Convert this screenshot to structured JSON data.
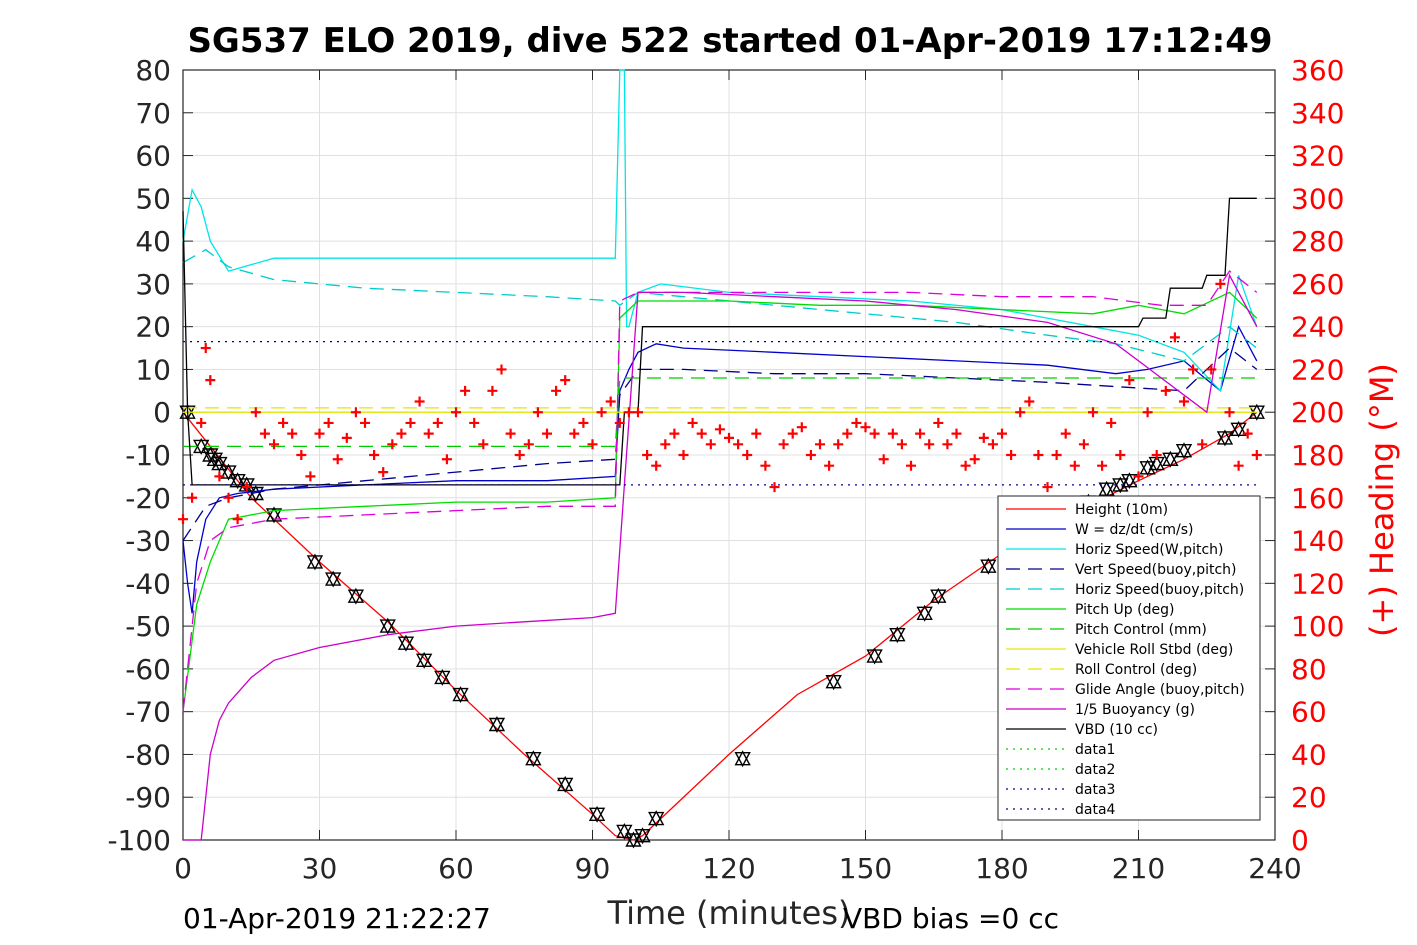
{
  "chart_data": {
    "type": "line",
    "title": "SG537 ELO 2019, dive 522 started 01-Apr-2019 17:12:49",
    "xlabel": "Time (minutes)",
    "ylabel": "",
    "ylabel_right": "(+) Heading (°M)",
    "xlim": [
      0,
      240
    ],
    "ylim": [
      -100,
      80
    ],
    "ylim_right": [
      0,
      360
    ],
    "x_ticks": [
      "0",
      "30",
      "60",
      "90",
      "120",
      "150",
      "180",
      "210",
      "240"
    ],
    "y_ticks": [
      "80",
      "70",
      "60",
      "50",
      "40",
      "30",
      "20",
      "10",
      "0",
      "-10",
      "-20",
      "-30",
      "-40",
      "-50",
      "-60",
      "-70",
      "-80",
      "-90",
      "-100"
    ],
    "y_ticks_right": [
      "360",
      "340",
      "320",
      "300",
      "280",
      "260",
      "240",
      "220",
      "200",
      "180",
      "160",
      "140",
      "120",
      "100",
      "80",
      "60",
      "40",
      "20",
      "0"
    ],
    "grid": true,
    "legend_placement": "bottom-right",
    "footer_left": "01-Apr-2019 21:22:27",
    "footer_right": "VBD bias =0 cc",
    "legend": [
      {
        "name": "Height (10m)",
        "color": "#ff0000",
        "dash": "solid"
      },
      {
        "name": "W = dz/dt (cm/s)",
        "color": "#0000cc",
        "dash": "solid"
      },
      {
        "name": "Horiz Speed(W,pitch)",
        "color": "#00e5e5",
        "dash": "solid"
      },
      {
        "name": "Vert Speed(buoy,pitch)",
        "color": "#00008b",
        "dash": "dashed"
      },
      {
        "name": "Horiz Speed(buoy,pitch)",
        "color": "#00cccc",
        "dash": "dashed"
      },
      {
        "name": "Pitch Up (deg)",
        "color": "#00dd00",
        "dash": "solid"
      },
      {
        "name": "Pitch Control (mm)",
        "color": "#00cc00",
        "dash": "dashed"
      },
      {
        "name": "Vehicle Roll Stbd (deg)",
        "color": "#e5e500",
        "dash": "solid"
      },
      {
        "name": "Roll Control (deg)",
        "color": "#e5e500",
        "dash": "dashed"
      },
      {
        "name": "Glide Angle (buoy,pitch)",
        "color": "#dd00dd",
        "dash": "dashed"
      },
      {
        "name": "1/5 Buoyancy (g)",
        "color": "#cc00cc",
        "dash": "solid"
      },
      {
        "name": "VBD (10 cc)",
        "color": "#000000",
        "dash": "solid"
      },
      {
        "name": "data1",
        "color": "#00cc00",
        "dash": "dotted"
      },
      {
        "name": "data2",
        "color": "#00cc00",
        "dash": "dotted"
      },
      {
        "name": "data3",
        "color": "#00008b",
        "dash": "dotted"
      },
      {
        "name": "data4",
        "color": "#00008b",
        "dash": "dotted"
      }
    ],
    "series": [
      {
        "key": "height",
        "color": "#ff0000",
        "dash": "solid",
        "axis": "left",
        "x": [
          0,
          15,
          30,
          45,
          60,
          75,
          90,
          95,
          99,
          101,
          105,
          120,
          135,
          150,
          165,
          180,
          195,
          210,
          220,
          230,
          236
        ],
        "y": [
          0,
          -20,
          -35,
          -49,
          -65,
          -80,
          -94,
          -99,
          -100,
          -99,
          -95,
          -80,
          -66,
          -57,
          -44,
          -33,
          -24,
          -16,
          -11,
          -5,
          0
        ]
      },
      {
        "key": "height-markers",
        "type": "markers",
        "color": "#000000",
        "axis": "left",
        "x": [
          1,
          4,
          6,
          7,
          8,
          10,
          12,
          14,
          16,
          20,
          29,
          33,
          38,
          45,
          49,
          53,
          57,
          61,
          69,
          77,
          84,
          91,
          97,
          99,
          101,
          104,
          123,
          143,
          152,
          157,
          163,
          166,
          177,
          187,
          193,
          199,
          203,
          206,
          208,
          212,
          214,
          217,
          220,
          229,
          232,
          236
        ],
        "y": [
          0,
          -8,
          -10,
          -11,
          -12,
          -14,
          -16,
          -17,
          -19,
          -24,
          -35,
          -39,
          -43,
          -50,
          -54,
          -58,
          -62,
          -66,
          -73,
          -81,
          -87,
          -94,
          -98,
          -100,
          -99,
          -95,
          -81,
          -63,
          -57,
          -52,
          -47,
          -43,
          -36,
          -31,
          -26,
          -21,
          -18,
          -17,
          -16,
          -13,
          -12,
          -11,
          -9,
          -6,
          -4,
          0
        ]
      },
      {
        "key": "w",
        "color": "#0000cc",
        "dash": "solid",
        "axis": "left",
        "x": [
          0,
          1,
          2,
          3,
          5,
          8,
          12,
          20,
          40,
          60,
          80,
          95,
          96,
          98,
          100,
          104,
          110,
          130,
          150,
          170,
          190,
          205,
          212,
          220,
          228,
          232,
          236
        ],
        "y": [
          -30,
          -40,
          -47,
          -35,
          -25,
          -20,
          -19,
          -18,
          -17,
          -16,
          -16,
          -15,
          5,
          10,
          14,
          16,
          15,
          14,
          13,
          12,
          11,
          9,
          10,
          12,
          5,
          20,
          12
        ]
      },
      {
        "key": "horiz-speed-w",
        "color": "#00e5e5",
        "dash": "solid",
        "axis": "left",
        "x": [
          0,
          2,
          4,
          6,
          10,
          20,
          40,
          60,
          80,
          95,
          96,
          97,
          97.5,
          98,
          100,
          105,
          120,
          140,
          160,
          180,
          200,
          210,
          220,
          228,
          232,
          236
        ],
        "y": [
          40,
          52,
          48,
          40,
          33,
          36,
          36,
          36,
          36,
          36,
          80,
          80,
          20,
          20,
          28,
          30,
          28,
          27,
          26,
          24,
          20,
          18,
          14,
          5,
          32,
          20
        ]
      },
      {
        "key": "vert-speed-buoy",
        "color": "#00008b",
        "dash": "dashed",
        "axis": "left",
        "x": [
          0,
          5,
          10,
          20,
          40,
          60,
          80,
          95,
          96,
          100,
          110,
          130,
          150,
          170,
          190,
          205,
          220,
          230,
          236
        ],
        "y": [
          -30,
          -22,
          -20,
          -18,
          -16,
          -14,
          -12,
          -11,
          4,
          10,
          10,
          9,
          9,
          8,
          7,
          6,
          5,
          15,
          10
        ]
      },
      {
        "key": "horiz-speed-buoy",
        "color": "#00cccc",
        "dash": "dashed",
        "axis": "left",
        "x": [
          0,
          5,
          10,
          20,
          40,
          60,
          80,
          95,
          96,
          100,
          110,
          130,
          150,
          170,
          190,
          205,
          220,
          230,
          236
        ],
        "y": [
          35,
          38,
          34,
          31,
          29,
          28,
          27,
          26,
          25,
          28,
          27,
          25,
          23,
          21,
          18,
          16,
          12,
          20,
          15
        ]
      },
      {
        "key": "pitch-up",
        "color": "#00dd00",
        "dash": "solid",
        "axis": "left",
        "x": [
          0,
          3,
          6,
          10,
          20,
          40,
          60,
          80,
          95,
          96,
          100,
          120,
          140,
          160,
          180,
          200,
          210,
          220,
          230,
          236
        ],
        "y": [
          -70,
          -45,
          -35,
          -25,
          -23,
          -22,
          -21,
          -21,
          -20,
          22,
          26,
          26,
          25,
          25,
          24,
          23,
          25,
          23,
          28,
          22
        ]
      },
      {
        "key": "pitch-control",
        "color": "#00cc00",
        "dash": "dashed",
        "axis": "left",
        "x": [
          0,
          5,
          10,
          30,
          60,
          90,
          95,
          96,
          100,
          130,
          160,
          200,
          220,
          236
        ],
        "y": [
          -8,
          -8,
          -8,
          -8,
          -8,
          -8,
          -8,
          8,
          8,
          8,
          8,
          8,
          8,
          8
        ]
      },
      {
        "key": "vehicle-roll",
        "color": "#e5e500",
        "dash": "solid",
        "axis": "left",
        "x": [
          0,
          20,
          40,
          60,
          80,
          95,
          100,
          120,
          140,
          160,
          180,
          200,
          220,
          236
        ],
        "y": [
          0,
          0,
          0,
          0,
          0,
          0,
          0,
          0,
          0,
          0,
          0,
          0,
          0,
          0
        ]
      },
      {
        "key": "roll-control",
        "color": "#e5e500",
        "dash": "dashed",
        "axis": "left",
        "x": [
          0,
          20,
          40,
          60,
          80,
          95,
          100,
          120,
          140,
          160,
          180,
          200,
          220,
          236
        ],
        "y": [
          1,
          1,
          1,
          1,
          1,
          1,
          1,
          1,
          1,
          1,
          1,
          1,
          1,
          1
        ]
      },
      {
        "key": "glide-angle",
        "color": "#dd00dd",
        "dash": "dashed",
        "axis": "left",
        "x": [
          0,
          3,
          6,
          10,
          20,
          40,
          60,
          80,
          95,
          96,
          100,
          120,
          140,
          160,
          180,
          200,
          215,
          225,
          230,
          236
        ],
        "y": [
          -70,
          -40,
          -30,
          -27,
          -25,
          -24,
          -23,
          -22,
          -22,
          26,
          28,
          28,
          28,
          28,
          27,
          27,
          25,
          25,
          33,
          28
        ]
      },
      {
        "key": "buoyancy",
        "color": "#cc00cc",
        "dash": "solid",
        "axis": "left",
        "x": [
          0,
          2,
          4,
          6,
          8,
          10,
          15,
          20,
          30,
          45,
          60,
          75,
          90,
          95,
          100,
          110,
          130,
          150,
          170,
          190,
          205,
          215,
          225,
          230,
          236
        ],
        "y": [
          -100,
          -100,
          -100,
          -80,
          -72,
          -68,
          -62,
          -58,
          -55,
          -52,
          -50,
          -49,
          -48,
          -47,
          28,
          28,
          27,
          26,
          24,
          21,
          16,
          8,
          0,
          32,
          20
        ]
      },
      {
        "key": "vbd",
        "color": "#000000",
        "dash": "solid",
        "axis": "left",
        "x": [
          0,
          1,
          2,
          3,
          20,
          95,
          96,
          97,
          100,
          101,
          150,
          210,
          211,
          216,
          217,
          224,
          225,
          229,
          230,
          236
        ],
        "y": [
          47,
          0,
          -17,
          -17,
          -17,
          -17,
          -17,
          0,
          0,
          20,
          20,
          20,
          22,
          22,
          29,
          29,
          32,
          32,
          50,
          50
        ]
      },
      {
        "key": "data3",
        "color": "#00008b",
        "dash": "dotted",
        "axis": "left",
        "x": [
          0,
          236
        ],
        "y": [
          16.5,
          16.5
        ]
      },
      {
        "key": "data4",
        "color": "#00008b",
        "dash": "dotted",
        "axis": "left",
        "x": [
          0,
          236
        ],
        "y": [
          -17,
          -17
        ]
      },
      {
        "key": "heading",
        "type": "cross-markers",
        "color": "#ff0000",
        "axis": "right",
        "x": [
          0,
          2,
          4,
          5,
          6,
          8,
          10,
          12,
          14,
          16,
          18,
          20,
          22,
          24,
          26,
          28,
          30,
          32,
          34,
          36,
          38,
          40,
          42,
          44,
          46,
          48,
          50,
          52,
          54,
          56,
          58,
          60,
          62,
          64,
          66,
          68,
          70,
          72,
          74,
          76,
          78,
          80,
          82,
          84,
          86,
          88,
          90,
          92,
          94,
          96,
          98,
          100,
          102,
          104,
          106,
          108,
          110,
          112,
          114,
          116,
          118,
          120,
          122,
          124,
          126,
          128,
          130,
          132,
          134,
          136,
          138,
          140,
          142,
          144,
          146,
          148,
          150,
          152,
          154,
          156,
          158,
          160,
          162,
          164,
          166,
          168,
          170,
          172,
          174,
          176,
          178,
          180,
          182,
          184,
          186,
          188,
          190,
          192,
          194,
          196,
          198,
          200,
          202,
          204,
          206,
          208,
          210,
          212,
          214,
          216,
          218,
          220,
          222,
          224,
          226,
          228,
          230,
          232,
          234,
          236
        ],
        "y": [
          150,
          160,
          195,
          230,
          215,
          170,
          160,
          150,
          165,
          200,
          190,
          185,
          195,
          190,
          180,
          170,
          190,
          195,
          178,
          188,
          200,
          195,
          180,
          172,
          185,
          190,
          195,
          205,
          190,
          195,
          178,
          200,
          210,
          195,
          185,
          210,
          220,
          190,
          180,
          185,
          200,
          190,
          210,
          215,
          190,
          195,
          185,
          200,
          205,
          195,
          200,
          200,
          180,
          175,
          185,
          190,
          180,
          195,
          190,
          185,
          192,
          188,
          185,
          180,
          190,
          175,
          165,
          185,
          190,
          193,
          180,
          185,
          175,
          185,
          190,
          195,
          193,
          190,
          178,
          190,
          185,
          175,
          190,
          185,
          195,
          185,
          190,
          175,
          178,
          188,
          185,
          190,
          180,
          200,
          205,
          180,
          165,
          180,
          190,
          175,
          185,
          200,
          175,
          195,
          180,
          215,
          170,
          200,
          180,
          210,
          235,
          205,
          220,
          185,
          220,
          260,
          200,
          175,
          190,
          180
        ]
      }
    ]
  }
}
